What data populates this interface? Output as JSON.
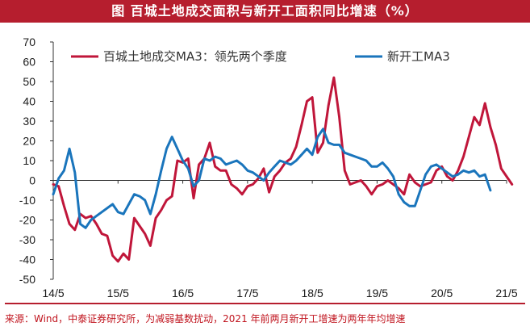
{
  "header": {
    "title": "图  百城土地成交面积与新开工面积同比增速（%）"
  },
  "footer": {
    "source": "来源：Wind，中泰证券研究所，为减弱基数扰动，2021 年前两月新开工增速为两年年均增速"
  },
  "chart_data": {
    "type": "line",
    "title": "百城土地成交面积与新开工面积同比增速（%）",
    "ylim": [
      -50,
      70
    ],
    "yticks": [
      70,
      60,
      50,
      40,
      30,
      20,
      10,
      0,
      -10,
      -20,
      -30,
      -40,
      -50
    ],
    "xlim": [
      "2014-05",
      "2021-05"
    ],
    "xticks": [
      "14/5",
      "15/5",
      "16/5",
      "17/5",
      "18/5",
      "19/5",
      "20/5",
      "21/5"
    ],
    "grid": false,
    "legend_position": "top",
    "series": [
      {
        "name": "百城土地成交MA3：领先两个季度",
        "color": "#c0163a",
        "points": [
          [
            "2014-05",
            -2
          ],
          [
            "2014-06",
            -3
          ],
          [
            "2014-07",
            -13
          ],
          [
            "2014-08",
            -22
          ],
          [
            "2014-09",
            -25
          ],
          [
            "2014-10",
            -17
          ],
          [
            "2014-11",
            -19
          ],
          [
            "2014-12",
            -18
          ],
          [
            "2015-01",
            -22
          ],
          [
            "2015-02",
            -27
          ],
          [
            "2015-03",
            -28
          ],
          [
            "2015-04",
            -38
          ],
          [
            "2015-05",
            -41
          ],
          [
            "2015-06",
            -37
          ],
          [
            "2015-07",
            -40
          ],
          [
            "2015-08",
            -19
          ],
          [
            "2015-09",
            -23
          ],
          [
            "2015-10",
            -27
          ],
          [
            "2015-11",
            -33
          ],
          [
            "2015-12",
            -19
          ],
          [
            "2016-01",
            -15
          ],
          [
            "2016-02",
            -10
          ],
          [
            "2016-03",
            -8
          ],
          [
            "2016-04",
            10
          ],
          [
            "2016-05",
            9
          ],
          [
            "2016-06",
            11
          ],
          [
            "2016-07",
            -9
          ],
          [
            "2016-08",
            8
          ],
          [
            "2016-09",
            11
          ],
          [
            "2016-10",
            19
          ],
          [
            "2016-11",
            7
          ],
          [
            "2016-12",
            5
          ],
          [
            "2017-01",
            5
          ],
          [
            "2017-02",
            -2
          ],
          [
            "2017-03",
            -4
          ],
          [
            "2017-04",
            -7
          ],
          [
            "2017-05",
            -3
          ],
          [
            "2017-06",
            -2
          ],
          [
            "2017-07",
            1
          ],
          [
            "2017-08",
            6
          ],
          [
            "2017-09",
            -6
          ],
          [
            "2017-10",
            2
          ],
          [
            "2017-11",
            5
          ],
          [
            "2017-12",
            9
          ],
          [
            "2018-01",
            11
          ],
          [
            "2018-02",
            17
          ],
          [
            "2018-03",
            28
          ],
          [
            "2018-04",
            40
          ],
          [
            "2018-05",
            42
          ],
          [
            "2018-06",
            14
          ],
          [
            "2018-07",
            19
          ],
          [
            "2018-08",
            38
          ],
          [
            "2018-09",
            52
          ],
          [
            "2018-10",
            32
          ],
          [
            "2018-11",
            5
          ],
          [
            "2018-12",
            -2
          ],
          [
            "2019-01",
            -1
          ],
          [
            "2019-02",
            0
          ],
          [
            "2019-03",
            -3
          ],
          [
            "2019-04",
            -7
          ],
          [
            "2019-05",
            -3
          ],
          [
            "2019-06",
            -2
          ],
          [
            "2019-07",
            0
          ],
          [
            "2019-08",
            -2
          ],
          [
            "2019-09",
            -4
          ],
          [
            "2019-10",
            -7
          ],
          [
            "2019-11",
            3
          ],
          [
            "2019-12",
            -1
          ],
          [
            "2020-01",
            -3
          ],
          [
            "2020-02",
            -2
          ],
          [
            "2020-03",
            -1
          ],
          [
            "2020-04",
            5
          ],
          [
            "2020-05",
            7
          ],
          [
            "2020-06",
            2
          ],
          [
            "2020-07",
            0
          ],
          [
            "2020-08",
            5
          ],
          [
            "2020-09",
            12
          ],
          [
            "2020-10",
            22
          ],
          [
            "2020-11",
            32
          ],
          [
            "2020-12",
            28
          ],
          [
            "2021-01",
            39
          ],
          [
            "2021-02",
            27
          ],
          [
            "2021-03",
            18
          ],
          [
            "2021-04",
            6
          ],
          [
            "2021-05",
            2
          ],
          [
            "2021-06",
            -2
          ]
        ]
      },
      {
        "name": "新开工MA3",
        "color": "#1a75bc",
        "points": [
          [
            "2014-05",
            -7
          ],
          [
            "2014-06",
            1
          ],
          [
            "2014-07",
            5
          ],
          [
            "2014-08",
            16
          ],
          [
            "2014-09",
            4
          ],
          [
            "2014-10",
            -22
          ],
          [
            "2014-11",
            -24
          ],
          [
            "2014-12",
            -20
          ],
          [
            "2015-01",
            -18
          ],
          [
            "2015-02",
            -16
          ],
          [
            "2015-03",
            -14
          ],
          [
            "2015-04",
            -12
          ],
          [
            "2015-05",
            -16
          ],
          [
            "2015-06",
            -17
          ],
          [
            "2015-07",
            -12
          ],
          [
            "2015-08",
            -7
          ],
          [
            "2015-09",
            -8
          ],
          [
            "2015-10",
            -10
          ],
          [
            "2015-11",
            -17
          ],
          [
            "2015-12",
            -7
          ],
          [
            "2016-01",
            5
          ],
          [
            "2016-02",
            16
          ],
          [
            "2016-03",
            22
          ],
          [
            "2016-04",
            16
          ],
          [
            "2016-05",
            10
          ],
          [
            "2016-06",
            6
          ],
          [
            "2016-07",
            -3
          ],
          [
            "2016-08",
            0
          ],
          [
            "2016-09",
            11
          ],
          [
            "2016-10",
            10
          ],
          [
            "2016-11",
            12
          ],
          [
            "2016-12",
            11
          ],
          [
            "2017-01",
            8
          ],
          [
            "2017-02",
            9
          ],
          [
            "2017-03",
            10
          ],
          [
            "2017-04",
            8
          ],
          [
            "2017-05",
            5
          ],
          [
            "2017-06",
            4
          ],
          [
            "2017-07",
            2
          ],
          [
            "2017-08",
            0
          ],
          [
            "2017-09",
            4
          ],
          [
            "2017-10",
            7
          ],
          [
            "2017-11",
            10
          ],
          [
            "2017-12",
            9
          ],
          [
            "2018-01",
            8
          ],
          [
            "2018-02",
            10
          ],
          [
            "2018-03",
            13
          ],
          [
            "2018-04",
            16
          ],
          [
            "2018-05",
            13
          ],
          [
            "2018-06",
            22
          ],
          [
            "2018-07",
            26
          ],
          [
            "2018-08",
            19
          ],
          [
            "2018-09",
            18
          ],
          [
            "2018-10",
            18
          ],
          [
            "2018-11",
            14
          ],
          [
            "2018-12",
            13
          ],
          [
            "2019-01",
            12
          ],
          [
            "2019-02",
            11
          ],
          [
            "2019-03",
            10
          ],
          [
            "2019-04",
            7
          ],
          [
            "2019-05",
            7
          ],
          [
            "2019-06",
            9
          ],
          [
            "2019-07",
            6
          ],
          [
            "2019-08",
            2
          ],
          [
            "2019-09",
            -7
          ],
          [
            "2019-10",
            -11
          ],
          [
            "2019-11",
            -13
          ],
          [
            "2019-12",
            -13
          ],
          [
            "2020-01",
            -5
          ],
          [
            "2020-02",
            3
          ],
          [
            "2020-03",
            7
          ],
          [
            "2020-04",
            8
          ],
          [
            "2020-05",
            6
          ],
          [
            "2020-06",
            4
          ],
          [
            "2020-07",
            2
          ],
          [
            "2020-08",
            3
          ],
          [
            "2020-09",
            5
          ],
          [
            "2020-10",
            4
          ],
          [
            "2020-11",
            5
          ],
          [
            "2020-12",
            2
          ],
          [
            "2021-01",
            3
          ],
          [
            "2021-02",
            -5
          ]
        ]
      }
    ]
  }
}
